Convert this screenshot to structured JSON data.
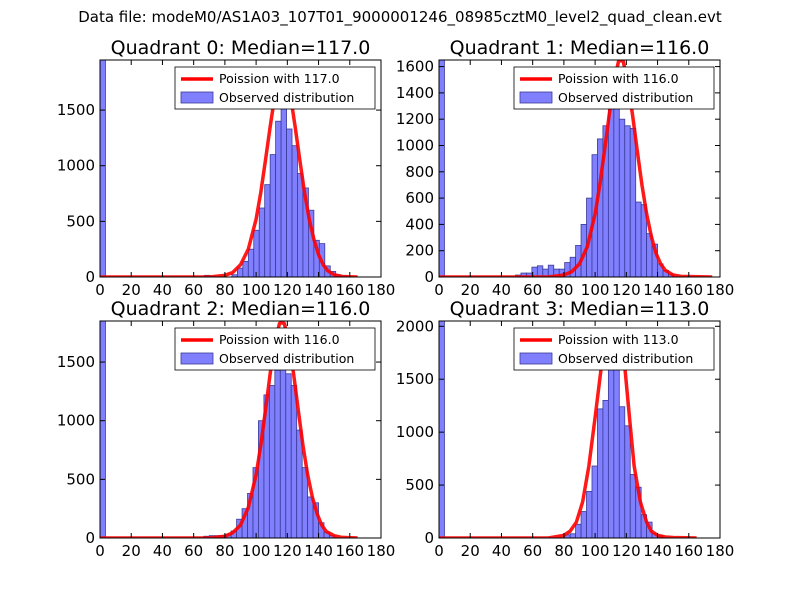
{
  "figure": {
    "title": "Data file: modeM0/AS1A03_107T01_9000001246_08985cztM0_level2_quad_clean.evt"
  },
  "colors": {
    "bar_fill": "#8080ff",
    "bar_edge": "#3a3a9a",
    "curve": "#ff0000"
  },
  "chart_data": [
    {
      "type": "bar",
      "title": "Quadrant 0: Median=117.0",
      "xlim": [
        0,
        180
      ],
      "ylim": [
        0,
        1950
      ],
      "xticks": [
        0,
        20,
        40,
        60,
        80,
        100,
        120,
        140,
        160,
        180
      ],
      "xtick_labels": [
        "0",
        "20",
        "40",
        "60",
        "80",
        "100",
        "120",
        "140",
        "160",
        "180"
      ],
      "yticks": [
        0,
        500,
        1000,
        1500
      ],
      "ytick_labels": [
        "0",
        "500",
        "1000",
        "1500"
      ],
      "legend": [
        "Poission with 117.0",
        "Observed distribution"
      ],
      "legend_loc": "upper-right",
      "bin_width": 3.5,
      "bins": [
        [
          0,
          1950
        ],
        [
          67,
          15
        ],
        [
          70.5,
          5
        ],
        [
          84.5,
          20
        ],
        [
          88,
          80
        ],
        [
          91.5,
          140
        ],
        [
          95,
          250
        ],
        [
          98.5,
          420
        ],
        [
          102,
          620
        ],
        [
          105.5,
          830
        ],
        [
          109,
          1100
        ],
        [
          112.5,
          1400
        ],
        [
          116,
          1600
        ],
        [
          119.5,
          1330
        ],
        [
          123,
          1180
        ],
        [
          126.5,
          930
        ],
        [
          130,
          800
        ],
        [
          133.5,
          600
        ],
        [
          137,
          330
        ],
        [
          140.5,
          300
        ],
        [
          144,
          100
        ],
        [
          147.5,
          50
        ],
        [
          151,
          20
        ],
        [
          154.5,
          10
        ]
      ],
      "curve_x": [
        0,
        70,
        80,
        85,
        90,
        95,
        100,
        103,
        106,
        109,
        112,
        115,
        117,
        119,
        122,
        125,
        128,
        131,
        134,
        137,
        140,
        143,
        146,
        150,
        155,
        165
      ],
      "curve_y": [
        0,
        0,
        15,
        40,
        110,
        250,
        520,
        760,
        1050,
        1350,
        1630,
        1820,
        1850,
        1820,
        1630,
        1350,
        1050,
        760,
        520,
        340,
        200,
        110,
        55,
        20,
        5,
        0
      ]
    },
    {
      "type": "bar",
      "title": "Quadrant 1: Median=116.0",
      "xlim": [
        0,
        180
      ],
      "ylim": [
        0,
        1650
      ],
      "xticks": [
        0,
        20,
        40,
        60,
        80,
        100,
        120,
        140,
        160,
        180
      ],
      "xtick_labels": [
        "0",
        "20",
        "40",
        "60",
        "80",
        "100",
        "120",
        "140",
        "160",
        "180"
      ],
      "yticks": [
        0,
        200,
        400,
        600,
        800,
        1000,
        1200,
        1400,
        1600
      ],
      "ytick_labels": [
        "0",
        "200",
        "400",
        "600",
        "800",
        "1000",
        "1200",
        "1400",
        "1600"
      ],
      "legend": [
        "Poission with 116.0",
        "Observed distribution"
      ],
      "legend_loc": "upper-right",
      "bin_width": 3.5,
      "bins": [
        [
          0,
          1650
        ],
        [
          49,
          15
        ],
        [
          52.5,
          30
        ],
        [
          56,
          30
        ],
        [
          59.5,
          75
        ],
        [
          63,
          85
        ],
        [
          66.5,
          60
        ],
        [
          70,
          90
        ],
        [
          73.5,
          60
        ],
        [
          77,
          60
        ],
        [
          80.5,
          110
        ],
        [
          84,
          150
        ],
        [
          87.5,
          240
        ],
        [
          91,
          400
        ],
        [
          94.5,
          600
        ],
        [
          98,
          930
        ],
        [
          101.5,
          1050
        ],
        [
          105,
          1150
        ],
        [
          108.5,
          1350
        ],
        [
          112,
          1300
        ],
        [
          115.5,
          1200
        ],
        [
          119,
          1150
        ],
        [
          122.5,
          1130
        ],
        [
          126,
          570
        ],
        [
          129.5,
          550
        ],
        [
          133,
          330
        ],
        [
          136.5,
          250
        ],
        [
          140,
          100
        ],
        [
          143.5,
          50
        ],
        [
          147,
          20
        ]
      ],
      "curve_x": [
        0,
        70,
        80,
        85,
        90,
        95,
        100,
        103,
        106,
        109,
        112,
        115,
        116,
        118,
        121,
        124,
        127,
        130,
        133,
        136,
        139,
        142,
        145,
        150,
        155,
        175
      ],
      "curve_y": [
        0,
        0,
        15,
        40,
        100,
        230,
        480,
        700,
        960,
        1230,
        1480,
        1640,
        1645,
        1640,
        1480,
        1230,
        960,
        700,
        480,
        310,
        180,
        100,
        50,
        15,
        5,
        0
      ]
    },
    {
      "type": "bar",
      "title": "Quadrant 2: Median=116.0",
      "xlim": [
        0,
        180
      ],
      "ylim": [
        0,
        1850
      ],
      "xticks": [
        0,
        20,
        40,
        60,
        80,
        100,
        120,
        140,
        160,
        180
      ],
      "xtick_labels": [
        "0",
        "20",
        "40",
        "60",
        "80",
        "100",
        "120",
        "140",
        "160",
        "180"
      ],
      "yticks": [
        0,
        500,
        1000,
        1500
      ],
      "ytick_labels": [
        "0",
        "500",
        "1000",
        "1500"
      ],
      "legend": [
        "Poission with 116.0",
        "Observed distribution"
      ],
      "legend_loc": "upper-right",
      "bin_width": 3.5,
      "bins": [
        [
          0,
          1850
        ],
        [
          66.5,
          15
        ],
        [
          70,
          20
        ],
        [
          73.5,
          20
        ],
        [
          77,
          20
        ],
        [
          80.5,
          30
        ],
        [
          84,
          60
        ],
        [
          87.5,
          160
        ],
        [
          91,
          250
        ],
        [
          94.5,
          380
        ],
        [
          98,
          600
        ],
        [
          101.5,
          1000
        ],
        [
          105,
          1220
        ],
        [
          108.5,
          1300
        ],
        [
          112,
          1430
        ],
        [
          115.5,
          1520
        ],
        [
          119,
          1400
        ],
        [
          122.5,
          1300
        ],
        [
          126,
          920
        ],
        [
          129.5,
          600
        ],
        [
          133,
          350
        ],
        [
          136.5,
          300
        ],
        [
          140,
          130
        ],
        [
          143.5,
          50
        ],
        [
          147,
          20
        ]
      ],
      "curve_x": [
        0,
        70,
        80,
        85,
        90,
        95,
        100,
        103,
        106,
        109,
        112,
        115,
        116,
        118,
        121,
        124,
        127,
        130,
        133,
        136,
        139,
        142,
        145,
        150,
        155,
        165
      ],
      "curve_y": [
        0,
        0,
        15,
        45,
        110,
        260,
        540,
        790,
        1090,
        1400,
        1670,
        1830,
        1835,
        1830,
        1670,
        1400,
        1090,
        790,
        540,
        350,
        210,
        110,
        55,
        20,
        5,
        0
      ]
    },
    {
      "type": "bar",
      "title": "Quadrant 3: Median=113.0",
      "xlim": [
        0,
        180
      ],
      "ylim": [
        0,
        2050
      ],
      "xticks": [
        0,
        20,
        40,
        60,
        80,
        100,
        120,
        140,
        160,
        180
      ],
      "xtick_labels": [
        "0",
        "20",
        "40",
        "60",
        "80",
        "100",
        "120",
        "140",
        "160",
        "180"
      ],
      "yticks": [
        0,
        500,
        1000,
        1500,
        2000
      ],
      "ytick_labels": [
        "0",
        "500",
        "1000",
        "1500",
        "2000"
      ],
      "legend": [
        "Poission with 113.0",
        "Observed distribution"
      ],
      "legend_loc": "upper-right",
      "bin_width": 3.5,
      "bins": [
        [
          0,
          2050
        ],
        [
          80.5,
          30
        ],
        [
          84,
          40
        ],
        [
          87.5,
          130
        ],
        [
          91,
          250
        ],
        [
          94.5,
          440
        ],
        [
          98,
          680
        ],
        [
          101.5,
          1220
        ],
        [
          105,
          1300
        ],
        [
          108.5,
          1900
        ],
        [
          112,
          1810
        ],
        [
          115.5,
          1240
        ],
        [
          119,
          1060
        ],
        [
          122.5,
          600
        ],
        [
          126,
          480
        ],
        [
          129.5,
          220
        ],
        [
          133,
          150
        ],
        [
          136.5,
          40
        ],
        [
          140,
          20
        ]
      ],
      "curve_x": [
        0,
        70,
        80,
        84,
        88,
        92,
        96,
        100,
        104,
        107,
        110,
        113,
        116,
        119,
        122,
        125,
        129,
        133,
        136,
        140,
        145,
        150,
        158,
        165
      ],
      "curve_y": [
        0,
        0,
        25,
        65,
        150,
        340,
        680,
        1140,
        1620,
        1880,
        1940,
        1970,
        1940,
        1620,
        1140,
        680,
        340,
        150,
        65,
        25,
        10,
        5,
        2,
        0
      ]
    }
  ]
}
